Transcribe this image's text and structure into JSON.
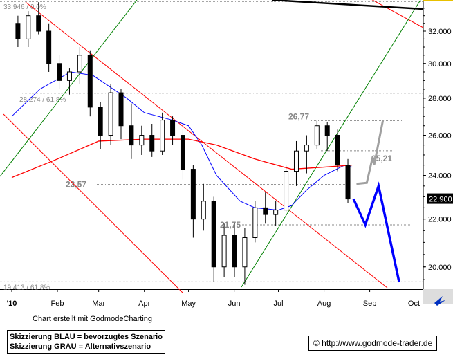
{
  "chart_data": {
    "type": "candlestick",
    "y_scale": "log",
    "ylim": [
      19.0,
      34.3
    ],
    "y_ticks": [
      "20.000",
      "22.000",
      "24.000",
      "26.000",
      "28.000",
      "30.000",
      "32.000"
    ],
    "y_tick_values": [
      20,
      22,
      24,
      26,
      28,
      30,
      32
    ],
    "x_ticks": [
      "'10",
      "Feb",
      "Mar",
      "Apr",
      "May",
      "Jun",
      "Jul",
      "Aug",
      "Sep",
      "Oct"
    ],
    "x_tick_dates": [
      "2010-01-01",
      "2010-02-01",
      "2010-03-01",
      "2010-04-01",
      "2010-05-01",
      "2010-06-01",
      "2010-07-01",
      "2010-08-01",
      "2010-09-01",
      "2010-10-01"
    ],
    "last_price": "22.900",
    "candles": [
      [
        "2010-01-08",
        32.5,
        33.0,
        31.0,
        31.5
      ],
      [
        "2010-01-15",
        31.5,
        33.3,
        31.0,
        33.0
      ],
      [
        "2010-01-22",
        33.0,
        33.9,
        31.8,
        32.0
      ],
      [
        "2010-01-29",
        32.0,
        32.5,
        29.5,
        30.0
      ],
      [
        "2010-02-05",
        30.0,
        30.5,
        28.5,
        29.0
      ],
      [
        "2010-02-12",
        29.0,
        29.7,
        28.2,
        29.5
      ],
      [
        "2010-02-19",
        29.5,
        31.0,
        28.8,
        30.5
      ],
      [
        "2010-02-26",
        30.5,
        30.8,
        27.0,
        27.5
      ],
      [
        "2010-03-05",
        27.5,
        27.8,
        25.3,
        26.0
      ],
      [
        "2010-03-12",
        26.0,
        28.8,
        25.5,
        28.3
      ],
      [
        "2010-03-19",
        28.3,
        28.5,
        25.8,
        26.5
      ],
      [
        "2010-03-26",
        26.5,
        27.7,
        24.8,
        25.5
      ],
      [
        "2010-04-02",
        25.5,
        26.5,
        25.0,
        26.0
      ],
      [
        "2010-04-09",
        26.0,
        26.6,
        24.9,
        25.2
      ],
      [
        "2010-04-16",
        25.2,
        27.2,
        25.0,
        26.8
      ],
      [
        "2010-04-23",
        26.8,
        27.0,
        25.5,
        26.0
      ],
      [
        "2010-04-30",
        26.0,
        26.3,
        23.8,
        24.3
      ],
      [
        "2010-05-07",
        24.3,
        24.5,
        21.2,
        22.0
      ],
      [
        "2010-05-14",
        22.0,
        23.6,
        21.5,
        22.8
      ],
      [
        "2010-05-21",
        22.8,
        23.0,
        19.4,
        20.0
      ],
      [
        "2010-05-28",
        20.0,
        21.8,
        19.6,
        21.3
      ],
      [
        "2010-06-04",
        21.3,
        21.8,
        19.6,
        20.0
      ],
      [
        "2010-06-11",
        20.0,
        21.6,
        19.3,
        21.2
      ],
      [
        "2010-06-18",
        21.2,
        22.8,
        21.0,
        22.5
      ],
      [
        "2010-06-25",
        22.5,
        23.2,
        21.8,
        22.2
      ],
      [
        "2010-07-02",
        22.2,
        22.8,
        21.7,
        22.4
      ],
      [
        "2010-07-09",
        22.4,
        24.5,
        22.3,
        24.2
      ],
      [
        "2010-07-16",
        24.2,
        25.7,
        23.5,
        25.2
      ],
      [
        "2010-07-23",
        25.2,
        26.0,
        24.1,
        25.5
      ],
      [
        "2010-07-30",
        25.5,
        26.77,
        25.3,
        26.5
      ],
      [
        "2010-08-06",
        26.5,
        26.7,
        25.2,
        26.0
      ],
      [
        "2010-08-13",
        26.0,
        26.3,
        24.2,
        24.5
      ],
      [
        "2010-08-20",
        24.5,
        24.8,
        22.7,
        22.9
      ]
    ],
    "moving_averages": [
      {
        "color": "#0000ff",
        "points": [
          [
            "2010-01-01",
            27.0
          ],
          [
            "2010-01-20",
            28.5
          ],
          [
            "2010-02-10",
            29.5
          ],
          [
            "2010-02-25",
            29.3
          ],
          [
            "2010-03-20",
            28.0
          ],
          [
            "2010-04-01",
            27.2
          ],
          [
            "2010-04-20",
            26.8
          ],
          [
            "2010-05-01",
            26.5
          ],
          [
            "2010-05-10",
            25.5
          ],
          [
            "2010-05-20",
            24.0
          ],
          [
            "2010-06-05",
            22.8
          ],
          [
            "2010-06-15",
            22.5
          ],
          [
            "2010-07-01",
            22.4
          ],
          [
            "2010-07-10",
            22.6
          ],
          [
            "2010-07-20",
            23.3
          ],
          [
            "2010-08-01",
            24.0
          ],
          [
            "2010-08-15",
            24.5
          ],
          [
            "2010-08-20",
            24.4
          ]
        ]
      },
      {
        "color": "#ff0000",
        "points": [
          [
            "2010-01-01",
            23.9
          ],
          [
            "2010-02-01",
            24.8
          ],
          [
            "2010-03-01",
            25.7
          ],
          [
            "2010-04-01",
            25.8
          ],
          [
            "2010-05-01",
            25.8
          ],
          [
            "2010-05-20",
            25.5
          ],
          [
            "2010-06-15",
            24.8
          ],
          [
            "2010-07-10",
            24.3
          ],
          [
            "2010-08-01",
            24.4
          ],
          [
            "2010-08-20",
            24.5
          ]
        ]
      }
    ],
    "levels": [
      {
        "value": 33.946,
        "label": "33.946 / 0.0%"
      },
      {
        "value": 28.274,
        "label": "28.274 / 61.8%"
      },
      {
        "value": 26.77,
        "label": "26,77"
      },
      {
        "value": 25.21,
        "label": "25,21"
      },
      {
        "value": 23.57,
        "label": "23,57"
      },
      {
        "value": 21.75,
        "label": "21,75"
      },
      {
        "value": 19.413,
        "label": "19.413 / 61.8%"
      }
    ],
    "scenario_blue": [
      [
        "2010-08-21",
        22.9
      ],
      [
        "2010-08-29",
        21.75
      ],
      [
        "2010-09-07",
        23.5
      ],
      [
        "2010-09-21",
        19.4
      ]
    ],
    "scenario_grey": [
      [
        "2010-08-23",
        23.6
      ],
      [
        "2010-08-30",
        23.65
      ],
      [
        "2010-09-03",
        24.9
      ],
      [
        "2010-09-04",
        24.5
      ],
      [
        "2010-09-10",
        26.8
      ]
    ]
  },
  "footer": {
    "credit": "Chart erstellt mit GodmodeCharting",
    "legend_blue": "Skizzierung BLAU = bevorzugtes Szenario",
    "legend_grey": "Skizzierung GRAU = Alternativszenario",
    "copyright": "© http://www.godmode-trader.de"
  },
  "colors": {
    "candle": "#000000",
    "trend_down": "#ff0000",
    "trend_up": "#008000",
    "scenario_blue": "#0000ff",
    "scenario_grey": "#a0a0a0"
  }
}
